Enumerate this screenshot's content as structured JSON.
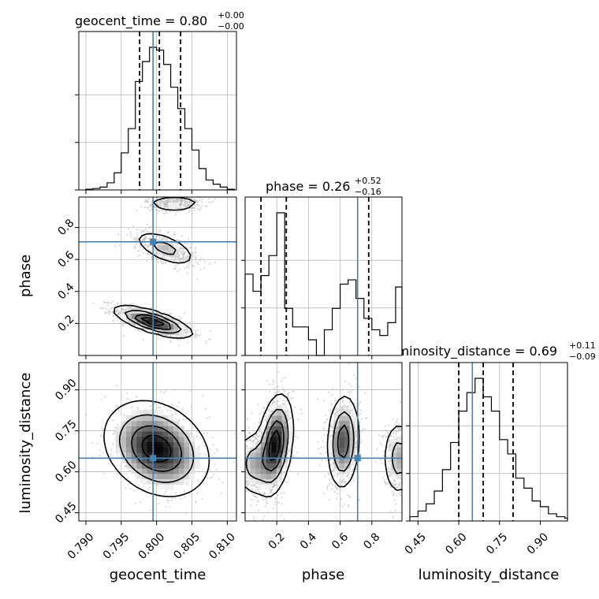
{
  "chart_data": {
    "type": "corner",
    "parameters": [
      "geocent_time",
      "phase",
      "luminosity_distance"
    ],
    "truth": {
      "geocent_time": 0.7995,
      "phase": 0.71,
      "luminosity_distance": 0.65
    },
    "colors": {
      "truth": "#4682b4",
      "contour": "#000000",
      "hist": "#000000",
      "grid": "#b0b0b0",
      "scatter": "#bbbbbb"
    },
    "grid": true,
    "titles": [
      {
        "param": "geocent_time",
        "prefix": "geocent_time = ",
        "value": "0.80",
        "plus": "+0.00",
        "minus": "−0.00"
      },
      {
        "param": "phase",
        "prefix": "phase = ",
        "value": "0.26",
        "plus": "+0.52",
        "minus": "−0.16"
      },
      {
        "param": "luminosity_distance",
        "prefix": "luminosity_distance = ",
        "value": "0.69",
        "plus": "+0.11",
        "minus": "−0.09"
      }
    ],
    "axes": {
      "geocent_time": {
        "range": [
          0.789,
          0.8113
        ],
        "ticks": [
          0.79,
          0.795,
          0.8,
          0.805,
          0.81
        ],
        "tick_labels": [
          "0.790",
          "0.795",
          "0.800",
          "0.805",
          "0.810"
        ],
        "label": "geocent_time"
      },
      "phase": {
        "range": [
          0.0,
          0.99
        ],
        "ticks": [
          0.2,
          0.4,
          0.6,
          0.8
        ],
        "tick_labels": [
          "0.2",
          "0.4",
          "0.6",
          "0.8"
        ],
        "label": "phase"
      },
      "luminosity_distance": {
        "range": [
          0.42,
          1.0
        ],
        "ticks": [
          0.45,
          0.6,
          0.75,
          0.9
        ],
        "tick_labels": [
          "0.45",
          "0.60",
          "0.75",
          "0.90"
        ],
        "label": "luminosity_distance"
      }
    },
    "histograms": {
      "geocent_time": {
        "quantiles": [
          0.7976,
          0.8004,
          0.8034
        ],
        "bin_edges": [
          0.79,
          0.791,
          0.792,
          0.793,
          0.794,
          0.795,
          0.796,
          0.797,
          0.798,
          0.799,
          0.8,
          0.801,
          0.802,
          0.803,
          0.804,
          0.805,
          0.806,
          0.807,
          0.808,
          0.809,
          0.81,
          0.811
        ],
        "counts": [
          0.5,
          1,
          2,
          5,
          12,
          26,
          43,
          76,
          90,
          100,
          98,
          88,
          72,
          57,
          43,
          28,
          15,
          7,
          4,
          2,
          0.5
        ]
      },
      "phase": {
        "quantiles": [
          0.1,
          0.26,
          0.78
        ],
        "bin_edges": [
          0.0,
          0.05,
          0.1,
          0.15,
          0.2,
          0.25,
          0.3,
          0.35,
          0.4,
          0.45,
          0.5,
          0.55,
          0.6,
          0.65,
          0.7,
          0.75,
          0.8,
          0.85,
          0.9,
          0.95,
          0.99
        ],
        "counts": [
          57,
          45,
          56,
          70,
          100,
          33,
          20,
          20,
          11,
          0,
          18,
          33,
          50,
          53,
          40,
          26,
          18,
          14,
          23,
          48
        ]
      },
      "luminosity_distance": {
        "quantiles": [
          0.6,
          0.69,
          0.8
        ],
        "bin_edges": [
          0.42,
          0.45,
          0.48,
          0.51,
          0.54,
          0.57,
          0.6,
          0.63,
          0.66,
          0.69,
          0.72,
          0.75,
          0.78,
          0.81,
          0.84,
          0.87,
          0.9,
          0.93,
          0.96,
          0.99,
          1.02
        ],
        "counts": [
          3,
          7,
          12,
          21,
          36,
          55,
          77,
          90,
          100,
          87,
          77,
          57,
          47,
          30,
          23,
          14,
          10,
          5,
          3,
          2
        ]
      }
    },
    "joint": [
      {
        "x": "geocent_time",
        "y": "phase",
        "modes": [
          {
            "cx": 0.7995,
            "cy": 0.21,
            "sx": 0.0027,
            "sy": 0.048,
            "rho": -0.72,
            "w": 1.0
          },
          {
            "cx": 0.8012,
            "cy": 0.67,
            "sx": 0.0022,
            "sy": 0.055,
            "rho": -0.6,
            "w": 0.45
          },
          {
            "cx": 0.8025,
            "cy": 0.95,
            "sx": 0.002,
            "sy": 0.025,
            "rho": 0.0,
            "w": 0.35
          }
        ]
      },
      {
        "x": "geocent_time",
        "y": "luminosity_distance",
        "modes": [
          {
            "cx": 0.8,
            "cy": 0.685,
            "sx": 0.0036,
            "sy": 0.085,
            "rho": -0.25,
            "w": 1.0
          }
        ]
      },
      {
        "x": "phase",
        "y": "luminosity_distance",
        "modes": [
          {
            "cx": 0.19,
            "cy": 0.7,
            "sx": 0.055,
            "sy": 0.09,
            "rho": 0.3,
            "w": 1.0
          },
          {
            "cx": 0.05,
            "cy": 0.63,
            "sx": 0.06,
            "sy": 0.06,
            "rho": 0.0,
            "w": 0.45
          },
          {
            "cx": 0.62,
            "cy": 0.71,
            "sx": 0.05,
            "sy": 0.085,
            "rho": 0.1,
            "w": 0.8
          },
          {
            "cx": 0.97,
            "cy": 0.65,
            "sx": 0.05,
            "sy": 0.07,
            "rho": 0.0,
            "w": 0.5
          }
        ]
      }
    ]
  }
}
